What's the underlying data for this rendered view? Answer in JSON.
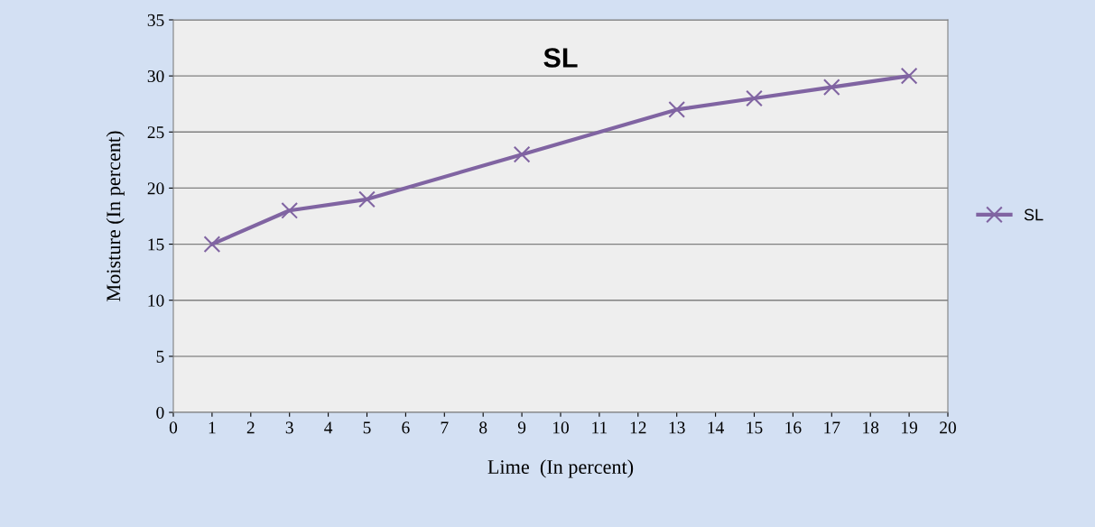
{
  "chart_data": {
    "type": "line",
    "title": "SL",
    "xlabel": "Lime  (In percent)",
    "ylabel": "Moisture (In percent)",
    "series": [
      {
        "name": "SL",
        "color": "#8064a2",
        "x": [
          1,
          3,
          5,
          9,
          13,
          15,
          17,
          19
        ],
        "values": [
          15,
          18,
          19,
          23,
          27,
          28,
          29,
          30
        ]
      }
    ],
    "xlim": [
      0,
      20
    ],
    "xticks": [
      0,
      1,
      2,
      3,
      4,
      5,
      6,
      7,
      8,
      9,
      10,
      11,
      12,
      13,
      14,
      15,
      16,
      17,
      18,
      19,
      20
    ],
    "ylim": [
      0,
      35
    ],
    "yticks": [
      0,
      5,
      10,
      15,
      20,
      25,
      30,
      35
    ],
    "grid": "y",
    "legend": "right",
    "marker": "cross",
    "line_style": "solid"
  }
}
